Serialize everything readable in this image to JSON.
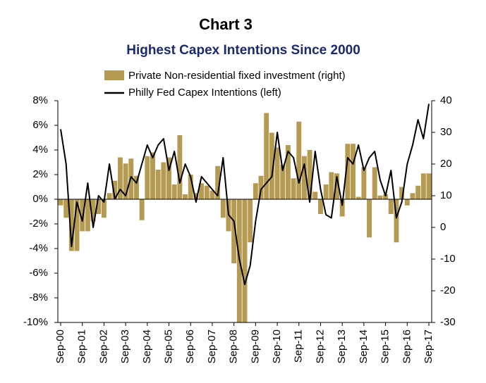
{
  "chart_data": {
    "type": "bar-line",
    "title": "Chart 3",
    "subtitle": "Highest Capex Intentions Since 2000",
    "categories": [
      "Sep-00",
      null,
      null,
      null,
      "Sep-01",
      null,
      null,
      null,
      "Sep-02",
      null,
      null,
      null,
      "Sep-03",
      null,
      null,
      null,
      "Sep-04",
      null,
      null,
      null,
      "Sep-05",
      null,
      null,
      null,
      "Sep-06",
      null,
      null,
      null,
      "Sep-07",
      null,
      null,
      null,
      "Sep-08",
      null,
      null,
      null,
      "Sep-09",
      null,
      null,
      null,
      "Sep-10",
      null,
      null,
      null,
      "Sep-11",
      null,
      null,
      null,
      "Sep-12",
      null,
      null,
      null,
      "Sep-13",
      null,
      null,
      null,
      "Sep-14",
      null,
      null,
      null,
      "Sep-15",
      null,
      null,
      null,
      "Sep-16",
      null,
      null,
      null,
      "Sep-17"
    ],
    "series": [
      {
        "name": "Private Non-residential fixed investment (right)",
        "type": "bar",
        "axis": "y",
        "color": "#b59b52",
        "values": [
          -0.5,
          -1.5,
          -4.2,
          -4.2,
          -2.6,
          -2.6,
          -1.8,
          -1.2,
          -1.5,
          0.5,
          1.5,
          3.4,
          2.9,
          3.3,
          1.9,
          -1.7,
          3.5,
          3.8,
          2.4,
          3.0,
          3.4,
          1.2,
          5.2,
          0.4,
          2.0,
          0.5,
          1.3,
          1.1,
          0.7,
          2.7,
          -1.5,
          -2.6,
          -5.2,
          -10.0,
          -10.0,
          -3.5,
          1.3,
          1.9,
          7.0,
          5.4,
          4.2,
          2.8,
          4.4,
          1.7,
          6.3,
          3.5,
          4.0,
          0.6,
          -1.2,
          1.2,
          2.2,
          2.1,
          -1.4,
          4.5,
          4.5,
          0.2,
          2.6,
          -3.1,
          2.6,
          0.3,
          0.4,
          -1.2,
          -3.5,
          1.0,
          -0.5,
          0.5,
          1.1,
          2.1,
          2.1
        ]
      },
      {
        "name": "Philly Fed Capex Intentions (left)",
        "type": "line",
        "axis": "y2",
        "color": "#000000",
        "values": [
          31,
          20,
          -6,
          8,
          2,
          14,
          0,
          10,
          8,
          20,
          9,
          12,
          10,
          16,
          14,
          20,
          26,
          22,
          26,
          28,
          18,
          24,
          14,
          20,
          16,
          8,
          16,
          14,
          12,
          10,
          22,
          4,
          2,
          -10,
          -18,
          -12,
          2,
          12,
          14,
          16,
          30,
          18,
          24,
          22,
          14,
          20,
          8,
          24,
          12,
          4,
          3,
          16,
          7,
          22,
          20,
          26,
          18,
          22,
          24,
          15,
          10,
          18,
          3,
          8,
          20,
          26,
          34,
          28,
          39
        ]
      }
    ],
    "ylim": [
      -10,
      8
    ],
    "yticks": [
      {
        "value": -10,
        "label": "-10%"
      },
      {
        "value": -8,
        "label": "-8%"
      },
      {
        "value": -6,
        "label": "-6%"
      },
      {
        "value": -4,
        "label": "-4%"
      },
      {
        "value": -2,
        "label": "-2%"
      },
      {
        "value": 0,
        "label": "0%"
      },
      {
        "value": 2,
        "label": "2%"
      },
      {
        "value": 4,
        "label": "4%"
      },
      {
        "value": 6,
        "label": "6%"
      },
      {
        "value": 8,
        "label": "8%"
      }
    ],
    "y2lim": [
      -30,
      40
    ],
    "y2ticks": [
      -30,
      -20,
      -10,
      0,
      10,
      20,
      30,
      40
    ]
  }
}
